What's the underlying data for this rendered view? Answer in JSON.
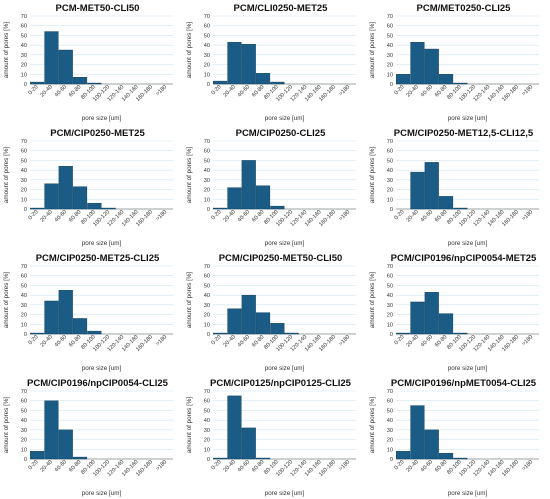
{
  "style": {
    "bar_color": "#1a5c85",
    "bar_edge": "#0d3a57",
    "grid_color": "#cfe6f1",
    "axis_color": "#555555"
  },
  "charts": [
    {
      "title": "PCM-MET50-CLI50",
      "chart_data": {
        "type": "bar",
        "title": "PCM-MET50-CLI50",
        "categories": [
          "0-20",
          "20-40",
          "40-60",
          "60-80",
          "80-100",
          "100-120",
          "120-140",
          "140-160",
          "160-180",
          ">180"
        ],
        "values": [
          2,
          54,
          35,
          7,
          1,
          0,
          0,
          0,
          0,
          0
        ],
        "xlabel": "pore size [um]",
        "ylabel": "amount of pores [%]",
        "ylim": [
          0,
          70
        ],
        "yticks": [
          0,
          10,
          20,
          30,
          40,
          50,
          60,
          70
        ],
        "grid": true
      }
    },
    {
      "title": "PCM/CLI0250-MET25",
      "chart_data": {
        "type": "bar",
        "title": "PCM/CLI0250-MET25",
        "categories": [
          "0-20",
          "20-40",
          "40-60",
          "60-80",
          "80-100",
          "100-120",
          "120-140",
          "140-160",
          "160-180",
          ">180"
        ],
        "values": [
          3,
          43,
          41,
          11,
          2,
          0,
          0,
          0,
          0,
          0
        ],
        "xlabel": "pore size [um]",
        "ylabel": "amount of pores [%]",
        "ylim": [
          0,
          70
        ],
        "yticks": [
          0,
          10,
          20,
          30,
          40,
          50,
          60,
          70
        ],
        "grid": true
      }
    },
    {
      "title": "PCM/MET0250-CLI25",
      "chart_data": {
        "type": "bar",
        "title": "PCM/MET0250-CLI25",
        "categories": [
          "0-20",
          "20-40",
          "40-60",
          "60-80",
          "80-100",
          "100-120",
          "120-140",
          "140-160",
          "160-180",
          ">180"
        ],
        "values": [
          10,
          43,
          36,
          10,
          1,
          0,
          0,
          0,
          0,
          0
        ],
        "xlabel": "pore size [um]",
        "ylabel": "amount of pores [%]",
        "ylim": [
          0,
          70
        ],
        "yticks": [
          0,
          10,
          20,
          30,
          40,
          50,
          60,
          70
        ],
        "grid": true
      }
    },
    {
      "title": "PCM/CIP0250-MET25",
      "chart_data": {
        "type": "bar",
        "title": "PCM/CIP0250-MET25",
        "categories": [
          "0-20",
          "20-40",
          "40-60",
          "60-80",
          "80-100",
          "100-120",
          "120-140",
          "140-160",
          "160-180",
          ">180"
        ],
        "values": [
          1,
          26,
          44,
          23,
          6,
          1,
          0,
          0,
          0,
          0
        ],
        "xlabel": "pore size [um]",
        "ylabel": "amount of pores [%]",
        "ylim": [
          0,
          70
        ],
        "yticks": [
          0,
          10,
          20,
          30,
          40,
          50,
          60,
          70
        ],
        "grid": true
      }
    },
    {
      "title": "PCM/CIP0250-CLI25",
      "chart_data": {
        "type": "bar",
        "title": "PCM/CIP0250-CLI25",
        "categories": [
          "0-20",
          "20-40",
          "40-60",
          "60-80",
          "80-100",
          "100-120",
          "120-140",
          "140-160",
          "160-180",
          ">180"
        ],
        "values": [
          1,
          22,
          50,
          24,
          3,
          0,
          0,
          0,
          0,
          0
        ],
        "xlabel": "pore size [um]",
        "ylabel": "amount of pores [%]",
        "ylim": [
          0,
          70
        ],
        "yticks": [
          0,
          10,
          20,
          30,
          40,
          50,
          60,
          70
        ],
        "grid": true
      }
    },
    {
      "title": "PCM/CIP0250-MET12,5-CLI12,5",
      "chart_data": {
        "type": "bar",
        "title": "PCM/CIP0250-MET12,5-CLI12,5",
        "categories": [
          "0-20",
          "20-40",
          "40-60",
          "60-80",
          "80-100",
          "100-120",
          "120-140",
          "140-160",
          "160-180",
          ">180"
        ],
        "values": [
          0,
          38,
          48,
          13,
          1,
          0,
          0,
          0,
          0,
          0
        ],
        "xlabel": "pore size [um]",
        "ylabel": "amount of pores [%]",
        "ylim": [
          0,
          70
        ],
        "yticks": [
          0,
          10,
          20,
          30,
          40,
          50,
          60,
          70
        ],
        "grid": true
      }
    },
    {
      "title": "PCM/CIP0250-MET25-CLI25",
      "chart_data": {
        "type": "bar",
        "title": "PCM/CIP0250-MET25-CLI25",
        "categories": [
          "0-20",
          "20-40",
          "40-60",
          "60-80",
          "80-100",
          "100-120",
          "120-140",
          "140-160",
          "160-180",
          ">180"
        ],
        "values": [
          1,
          34,
          45,
          16,
          3,
          0,
          0,
          0,
          0,
          0
        ],
        "xlabel": "pore size [um]",
        "ylabel": "amount of pores [%]",
        "ylim": [
          0,
          70
        ],
        "yticks": [
          0,
          10,
          20,
          30,
          40,
          50,
          60,
          70
        ],
        "grid": true
      }
    },
    {
      "title": "PCM/CIP0250-MET50-CLI50",
      "chart_data": {
        "type": "bar",
        "title": "PCM/CIP0250-MET50-CLI50",
        "categories": [
          "0-20",
          "20-40",
          "40-60",
          "60-80",
          "80-100",
          "100-120",
          "120-140",
          "140-160",
          "160-180",
          ">180"
        ],
        "values": [
          1,
          26,
          40,
          22,
          11,
          1,
          0,
          0,
          0,
          0
        ],
        "xlabel": "pore size [um]",
        "ylabel": "amount of pores [%]",
        "ylim": [
          0,
          70
        ],
        "yticks": [
          0,
          10,
          20,
          30,
          40,
          50,
          60,
          70
        ],
        "grid": true
      }
    },
    {
      "title": "PCM/CIP0196/npCIP0054-MET25",
      "chart_data": {
        "type": "bar",
        "title": "PCM/CIP0196/npCIP0054-MET25",
        "categories": [
          "0-20",
          "20-40",
          "40-60",
          "60-80",
          "80-100",
          "100-120",
          "120-140",
          "140-160",
          "160-180",
          ">180"
        ],
        "values": [
          1,
          33,
          43,
          21,
          1,
          0,
          0,
          0,
          0,
          0
        ],
        "xlabel": "pore size [um]",
        "ylabel": "amount of pores [%]",
        "ylim": [
          0,
          70
        ],
        "yticks": [
          0,
          10,
          20,
          30,
          40,
          50,
          60,
          70
        ],
        "grid": true
      }
    },
    {
      "title": "PCM/CIP0196/npCIP0054-CLI25",
      "chart_data": {
        "type": "bar",
        "title": "PCM/CIP0196/npCIP0054-CLI25",
        "categories": [
          "0-20",
          "20-40",
          "40-60",
          "60-80",
          "80-100",
          "100-120",
          "120-140",
          "140-160",
          "160-180",
          ">180"
        ],
        "values": [
          8,
          60,
          30,
          2,
          0,
          0,
          0,
          0,
          0,
          0
        ],
        "xlabel": "pore size [um]",
        "ylabel": "amount of pores [%]",
        "ylim": [
          0,
          70
        ],
        "yticks": [
          0,
          10,
          20,
          30,
          40,
          50,
          60,
          70
        ],
        "grid": true
      }
    },
    {
      "title": "PCM/CIP0125/npCIP0125-CLI25",
      "chart_data": {
        "type": "bar",
        "title": "PCM/CIP0125/npCIP0125-CLI25",
        "categories": [
          "0-20",
          "20-40",
          "40-60",
          "60-80",
          "80-100",
          "100-120",
          "120-140",
          "140-160",
          "160-180",
          ">180"
        ],
        "values": [
          1,
          65,
          32,
          1,
          0,
          0,
          0,
          0,
          0,
          0
        ],
        "xlabel": "pore size [um]",
        "ylabel": "amount of pores [%]",
        "ylim": [
          0,
          70
        ],
        "yticks": [
          0,
          10,
          20,
          30,
          40,
          50,
          60,
          70
        ],
        "grid": true
      }
    },
    {
      "title": "PCM/CIP0196/npMET0054-CLI25",
      "chart_data": {
        "type": "bar",
        "title": "PCM/CIP0196/npMET0054-CLI25",
        "categories": [
          "0-20",
          "20-40",
          "40-60",
          "60-80",
          "80-100",
          "100-120",
          "120-140",
          "140-160",
          "160-180",
          ">180"
        ],
        "values": [
          8,
          55,
          30,
          6,
          1,
          0,
          0,
          0,
          0,
          0
        ],
        "xlabel": "pore size [um]",
        "ylabel": "amount of pores [%]",
        "ylim": [
          0,
          70
        ],
        "yticks": [
          0,
          10,
          20,
          30,
          40,
          50,
          60,
          70
        ],
        "grid": true
      }
    }
  ]
}
